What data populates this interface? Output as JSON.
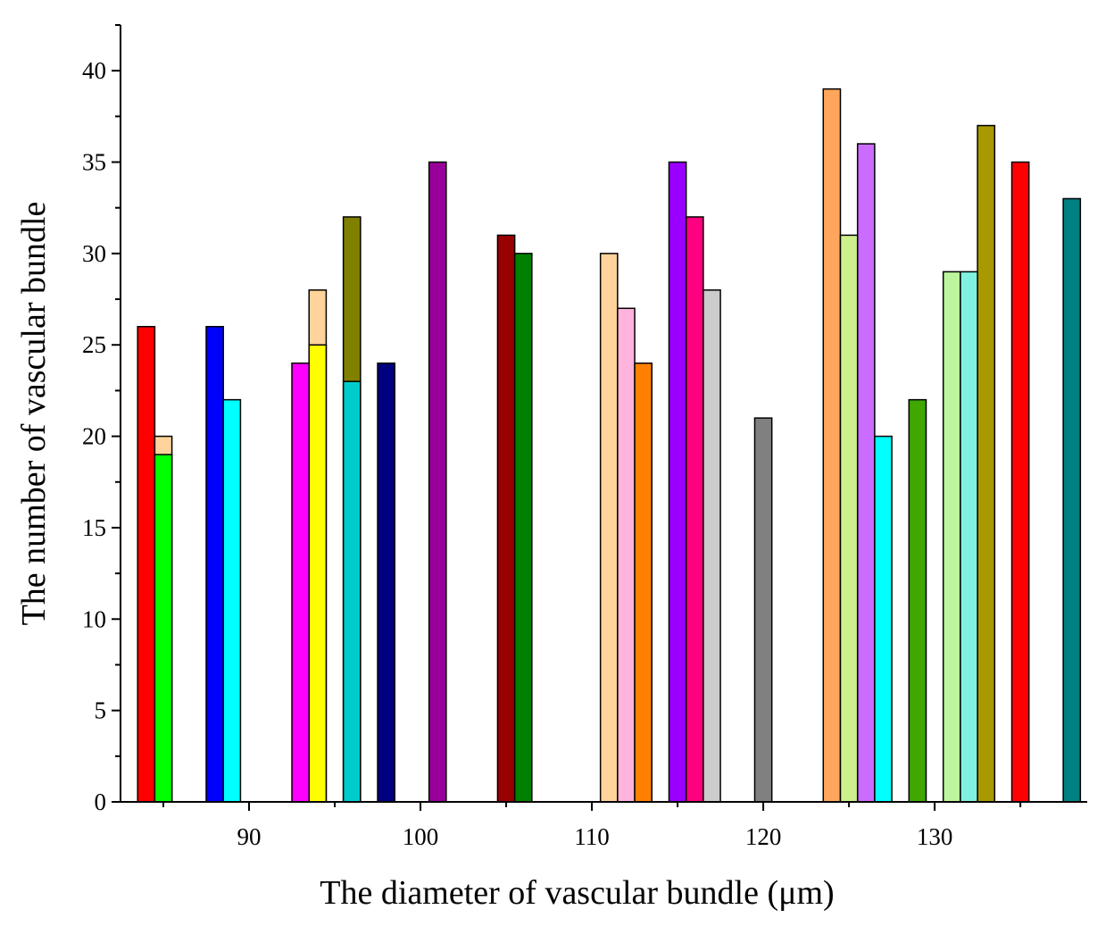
{
  "chart_data": {
    "type": "bar",
    "title": "",
    "xlabel": "The diameter of vascular bundle (μm)",
    "ylabel": "The number of vascular bundle",
    "xlim": [
      82.5,
      138.9
    ],
    "ylim": [
      0,
      42.5
    ],
    "x_major_ticks": [
      90,
      100,
      110,
      120,
      130
    ],
    "y_major_ticks": [
      0,
      5,
      10,
      15,
      20,
      25,
      30,
      35,
      40
    ],
    "bar_width": 1,
    "bars": [
      {
        "x": 84,
        "value": 26,
        "color": "#ff0000"
      },
      {
        "x": 85,
        "value": 20,
        "color": "#ffd39b"
      },
      {
        "x": 85,
        "value": 19,
        "color": "#00ff00"
      },
      {
        "x": 88,
        "value": 26,
        "color": "#0000ff"
      },
      {
        "x": 89,
        "value": 22,
        "color": "#00ffff"
      },
      {
        "x": 93,
        "value": 24,
        "color": "#ff00ff"
      },
      {
        "x": 94,
        "value": 28,
        "color": "#ffd39b"
      },
      {
        "x": 94,
        "value": 25,
        "color": "#ffff00"
      },
      {
        "x": 96,
        "value": 32,
        "color": "#808000"
      },
      {
        "x": 96,
        "value": 23,
        "color": "#00cccc"
      },
      {
        "x": 98,
        "value": 24,
        "color": "#000080"
      },
      {
        "x": 101,
        "value": 35,
        "color": "#990099"
      },
      {
        "x": 105,
        "value": 31,
        "color": "#990000"
      },
      {
        "x": 106,
        "value": 30,
        "color": "#008000"
      },
      {
        "x": 111,
        "value": 30,
        "color": "#ffd39b"
      },
      {
        "x": 112,
        "value": 27,
        "color": "#ffb3dd"
      },
      {
        "x": 113,
        "value": 24,
        "color": "#ff8000"
      },
      {
        "x": 115,
        "value": 35,
        "color": "#9900ff"
      },
      {
        "x": 116,
        "value": 32,
        "color": "#ff0080"
      },
      {
        "x": 117,
        "value": 28,
        "color": "#cccccc"
      },
      {
        "x": 120,
        "value": 21,
        "color": "#808080"
      },
      {
        "x": 124,
        "value": 39,
        "color": "#ffa65c"
      },
      {
        "x": 125,
        "value": 31,
        "color": "#ccf08c"
      },
      {
        "x": 126,
        "value": 36,
        "color": "#cc6bff"
      },
      {
        "x": 127,
        "value": 20,
        "color": "#00ffff"
      },
      {
        "x": 129,
        "value": 22,
        "color": "#40a600"
      },
      {
        "x": 131,
        "value": 29,
        "color": "#bbf59d"
      },
      {
        "x": 132,
        "value": 29,
        "color": "#80f0e0"
      },
      {
        "x": 133,
        "value": 37,
        "color": "#a89900"
      },
      {
        "x": 135,
        "value": 35,
        "color": "#ff0000"
      },
      {
        "x": 138,
        "value": 33,
        "color": "#008080"
      }
    ]
  }
}
